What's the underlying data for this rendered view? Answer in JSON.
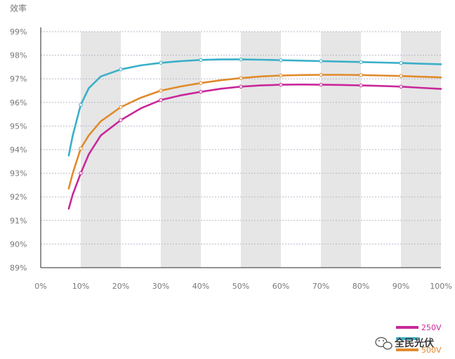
{
  "chart_data": {
    "type": "line",
    "ylabel": "效率",
    "x_ticks": [
      "0%",
      "10%",
      "20%",
      "30%",
      "40%",
      "50%",
      "60%",
      "70%",
      "80%",
      "90%",
      "100%"
    ],
    "y_ticks": [
      "89%",
      "90%",
      "91%",
      "92%",
      "93%",
      "94%",
      "95%",
      "96%",
      "97%",
      "98%",
      "99%"
    ],
    "xlim": [
      0,
      100
    ],
    "ylim": [
      89,
      99
    ],
    "grid": "horizontal dashed",
    "alternating_bands": true,
    "legend_position": "bottom-right",
    "series": [
      {
        "name": "250V",
        "color": "#c8289a",
        "points": [
          [
            7,
            91.5
          ],
          [
            8,
            92.1
          ],
          [
            10,
            93.0
          ],
          [
            12,
            93.8
          ],
          [
            15,
            94.6
          ],
          [
            20,
            95.25
          ],
          [
            25,
            95.75
          ],
          [
            30,
            96.1
          ],
          [
            35,
            96.3
          ],
          [
            40,
            96.45
          ],
          [
            45,
            96.58
          ],
          [
            50,
            96.67
          ],
          [
            55,
            96.72
          ],
          [
            60,
            96.75
          ],
          [
            65,
            96.76
          ],
          [
            70,
            96.75
          ],
          [
            75,
            96.74
          ],
          [
            80,
            96.72
          ],
          [
            85,
            96.7
          ],
          [
            90,
            96.67
          ],
          [
            95,
            96.62
          ],
          [
            100,
            96.57
          ]
        ],
        "markers": [
          10,
          20,
          30,
          40,
          50,
          60,
          70,
          80,
          90
        ]
      },
      {
        "name": "",
        "color": "#3aafc8",
        "points": [
          [
            7,
            93.75
          ],
          [
            8,
            94.6
          ],
          [
            10,
            95.9
          ],
          [
            12,
            96.6
          ],
          [
            15,
            97.1
          ],
          [
            20,
            97.4
          ],
          [
            25,
            97.57
          ],
          [
            30,
            97.68
          ],
          [
            35,
            97.75
          ],
          [
            40,
            97.8
          ],
          [
            45,
            97.82
          ],
          [
            50,
            97.82
          ],
          [
            55,
            97.81
          ],
          [
            60,
            97.79
          ],
          [
            65,
            97.77
          ],
          [
            70,
            97.75
          ],
          [
            75,
            97.73
          ],
          [
            80,
            97.71
          ],
          [
            85,
            97.69
          ],
          [
            90,
            97.67
          ],
          [
            95,
            97.64
          ],
          [
            100,
            97.62
          ]
        ],
        "markers": [
          10,
          20,
          30,
          40,
          50,
          60,
          70,
          80,
          90
        ]
      },
      {
        "name": "500V",
        "color": "#e08a2c",
        "points": [
          [
            7,
            92.35
          ],
          [
            8,
            93.0
          ],
          [
            10,
            94.05
          ],
          [
            12,
            94.6
          ],
          [
            15,
            95.2
          ],
          [
            20,
            95.8
          ],
          [
            25,
            96.2
          ],
          [
            30,
            96.5
          ],
          [
            35,
            96.68
          ],
          [
            40,
            96.82
          ],
          [
            45,
            96.94
          ],
          [
            50,
            97.03
          ],
          [
            55,
            97.1
          ],
          [
            60,
            97.14
          ],
          [
            65,
            97.16
          ],
          [
            70,
            97.17
          ],
          [
            75,
            97.17
          ],
          [
            80,
            97.16
          ],
          [
            85,
            97.14
          ],
          [
            90,
            97.12
          ],
          [
            95,
            97.09
          ],
          [
            100,
            97.06
          ]
        ],
        "markers": [
          10,
          20,
          30,
          40,
          50,
          60,
          70,
          80,
          90
        ]
      }
    ]
  },
  "watermark": "全民光伏"
}
